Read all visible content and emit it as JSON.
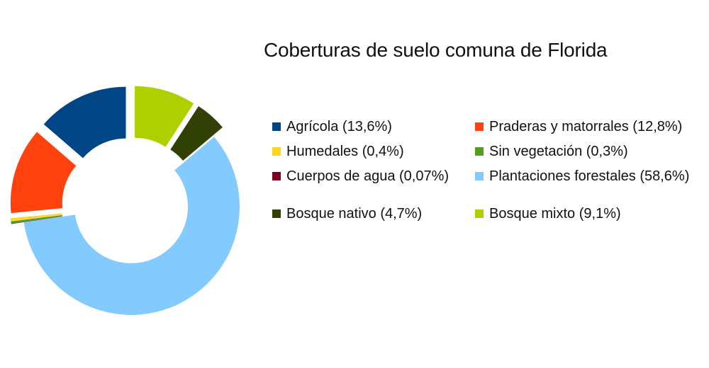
{
  "chart_data": {
    "type": "pie",
    "subtype": "exploded-donut",
    "title": "Coberturas de suelo comuna de Florida",
    "legend_position": "right",
    "slices": [
      {
        "name": "Agrícola",
        "value": 13.6,
        "label": "Agrícola (13,6%)",
        "color": "#004586"
      },
      {
        "name": "Praderas y matorrales",
        "value": 12.8,
        "label": "Praderas y matorrales (12,8%)",
        "color": "#ff420e"
      },
      {
        "name": "Humedales",
        "value": 0.4,
        "label": "Humedales (0,4%)",
        "color": "#ffd320"
      },
      {
        "name": "Sin vegetación",
        "value": 0.3,
        "label": "Sin vegetación (0,3%)",
        "color": "#579d1c"
      },
      {
        "name": "Cuerpos de agua",
        "value": 0.07,
        "label": "Cuerpos de agua (0,07%)",
        "color": "#7e0021"
      },
      {
        "name": "Plantaciones forestales",
        "value": 58.6,
        "label": "Plantaciones forestales (58,6%)",
        "color": "#83caff"
      },
      {
        "name": "Bosque nativo",
        "value": 4.7,
        "label": "Bosque nativo (4,7%)",
        "color": "#314004"
      },
      {
        "name": "Bosque mixto",
        "value": 9.1,
        "label": "Bosque mixto (9,1%)",
        "color": "#aecf00"
      }
    ]
  }
}
